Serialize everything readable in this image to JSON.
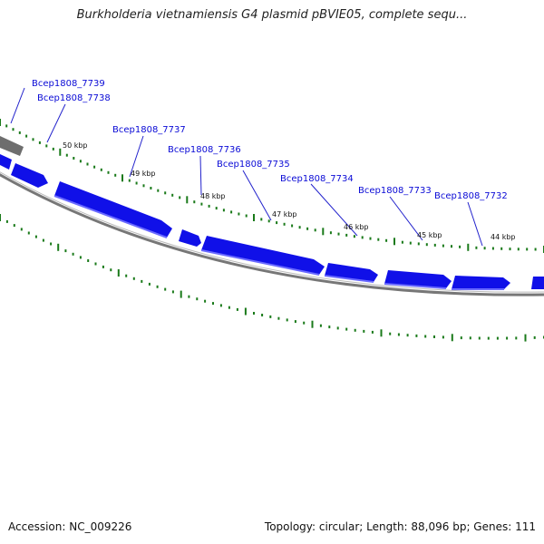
{
  "title": "Burkholderia vietnamiensis G4 plasmid pBVIE05, complete sequ...",
  "footer": {
    "accession": "Accession: NC_009226",
    "summary": "Topology: circular; Length: 88,096 bp; Genes: 111"
  },
  "genes": [
    {
      "name": "Bcep1808_7739"
    },
    {
      "name": "Bcep1808_7738"
    },
    {
      "name": "Bcep1808_7737"
    },
    {
      "name": "Bcep1808_7736"
    },
    {
      "name": "Bcep1808_7735"
    },
    {
      "name": "Bcep1808_7734"
    },
    {
      "name": "Bcep1808_7733"
    },
    {
      "name": "Bcep1808_7732"
    }
  ],
  "scale_labels": [
    "50 kbp",
    "49 kbp",
    "48 kbp",
    "47 kbp",
    "46 kbp",
    "45 kbp",
    "44 kbp"
  ],
  "colors": {
    "gene": "#1010e8",
    "gene_highlight": "#6a6aff",
    "backbone": "#777777",
    "ticks": "#1a7a1a",
    "label": "#0a0ad6"
  }
}
